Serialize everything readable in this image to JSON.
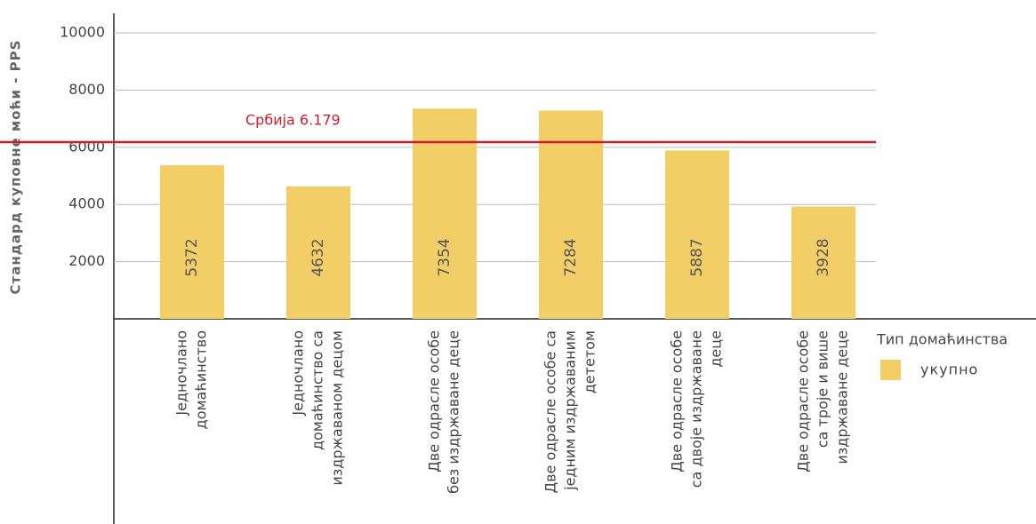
{
  "chart_data": {
    "type": "bar",
    "y_label": "Стандард куповне моћи - PPS",
    "categories": [
      [
        "Једночлано",
        "домаћинство"
      ],
      [
        "Једночлано",
        "домаћинство са",
        "издржаваном децом"
      ],
      [
        "Две одрасле особе",
        "без издржаване деце"
      ],
      [
        "Две одрасле особе са",
        "једним издржаваним",
        "дететом"
      ],
      [
        "Две одрасле особе",
        "са двоје издржаване",
        "деце"
      ],
      [
        "Две одрасле особе",
        "са троје и више",
        "издржаване деце"
      ]
    ],
    "series": [
      {
        "name": "укупно",
        "color": "#f2cf66",
        "values": [
          5372,
          4632,
          7354,
          7284,
          5887,
          3928
        ]
      }
    ],
    "legend_title": "Тип домаћинства",
    "legend": "right",
    "reference": {
      "value": 6179,
      "label": "Србија 6.179",
      "color": "#c8202f"
    },
    "ylim": [
      0,
      10000
    ],
    "yticks": [
      2000,
      4000,
      6000,
      8000,
      10000
    ],
    "grid": true
  }
}
